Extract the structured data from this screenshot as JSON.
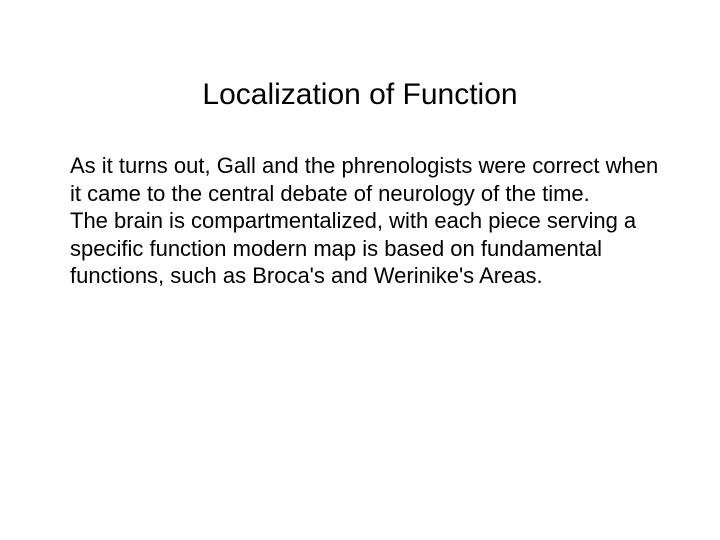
{
  "slide": {
    "title": "Localization of Function",
    "paragraph1": "As it turns out, Gall and the phrenologists were correct when it came to the central debate of neurology of the time.",
    "paragraph2": "The brain is compartmentalized, with each piece serving a specific function modern map is based on fundamental functions, such as Broca's and Werinike's Areas.",
    "title_fontsize": 30,
    "body_fontsize": 22,
    "background_color": "#ffffff",
    "text_color": "#000000"
  }
}
